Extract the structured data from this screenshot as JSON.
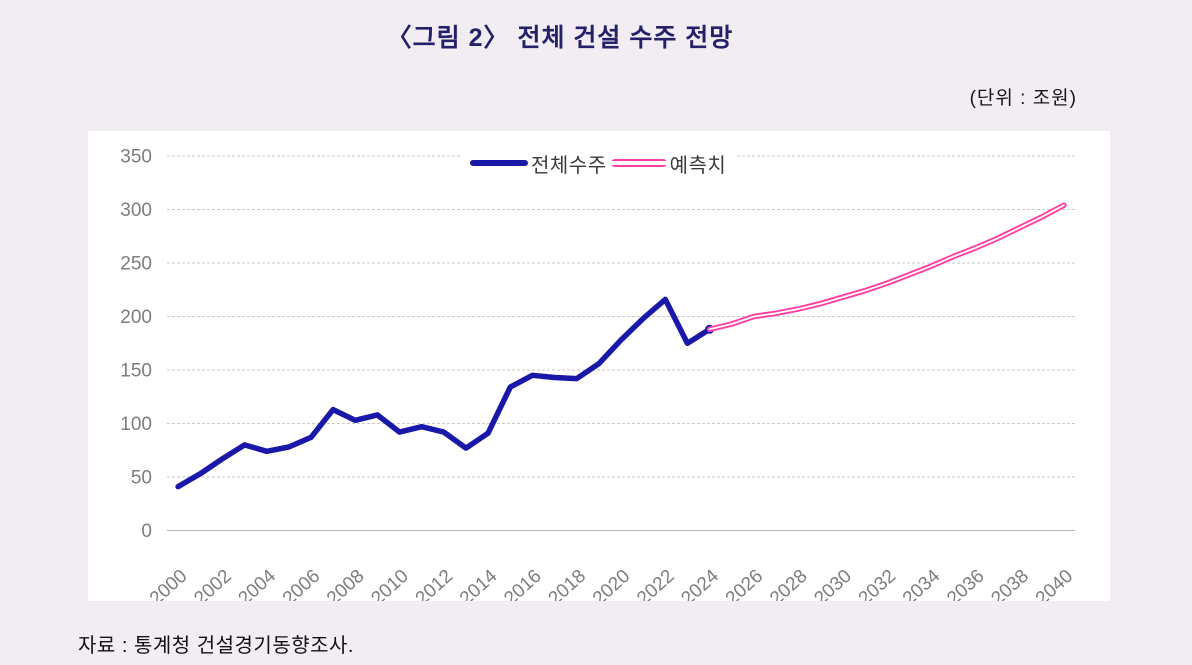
{
  "page": {
    "background": "#f2edf3"
  },
  "header": {
    "title": "〈그림 2〉 전체 건설 수주 전망",
    "unit_label": "(단위 : 조원)"
  },
  "source_note": "자료 : 통계청 건설경기동향조사.",
  "colors": {
    "actual_line": "#1a18a8",
    "forecast_line": "#ff3da4",
    "gridline": "#c9c9c9",
    "baseline": "#b5b5b5",
    "axis_text": "#7d7d7d",
    "title_text": "#242168",
    "panel_background": "#ffffff"
  },
  "chart_data": {
    "type": "line",
    "title": "전체 건설 수주 전망",
    "xlabel": "",
    "ylabel": "조원",
    "ylim": [
      0,
      350
    ],
    "ytick_step": 50,
    "ytick_labels": [
      "0",
      "50",
      "100",
      "150",
      "200",
      "250",
      "300",
      "350"
    ],
    "x_tick_interval": 2,
    "x_tick_labels": [
      "2000",
      "2002",
      "2004",
      "2006",
      "2008",
      "2010",
      "2012",
      "2014",
      "2016",
      "2018",
      "2020",
      "2022",
      "2024",
      "2026",
      "2028",
      "2030",
      "2032",
      "2034",
      "2036",
      "2038",
      "2040"
    ],
    "grid": "horizontal-dashed",
    "legend_position": "top-center",
    "x": [
      2000,
      2001,
      2002,
      2003,
      2004,
      2005,
      2006,
      2007,
      2008,
      2009,
      2010,
      2011,
      2012,
      2013,
      2014,
      2015,
      2016,
      2017,
      2018,
      2019,
      2020,
      2021,
      2022,
      2023,
      2024,
      2025,
      2026,
      2027,
      2028,
      2029,
      2030,
      2031,
      2032,
      2033,
      2034,
      2035,
      2036,
      2037,
      2038,
      2039,
      2040
    ],
    "series": [
      {
        "name": "전체수주",
        "color": "#1a18a8",
        "style": "solid",
        "values": [
          41,
          53,
          67,
          80,
          74,
          78,
          87,
          113,
          103,
          108,
          92,
          97,
          92,
          77,
          91,
          134,
          145,
          143,
          142,
          156,
          178,
          198,
          216,
          175,
          188,
          null,
          null,
          null,
          null,
          null,
          null,
          null,
          null,
          null,
          null,
          null,
          null,
          null,
          null,
          null,
          null
        ]
      },
      {
        "name": "예측치",
        "color": "#ff3da4",
        "style": "double-line",
        "values": [
          null,
          null,
          null,
          null,
          null,
          null,
          null,
          null,
          null,
          null,
          null,
          null,
          null,
          null,
          null,
          null,
          null,
          null,
          null,
          null,
          null,
          null,
          null,
          null,
          188,
          193,
          200,
          203,
          207,
          212,
          218,
          224,
          231,
          239,
          247,
          256,
          264,
          273,
          283,
          293,
          304
        ]
      }
    ],
    "junction_marker": {
      "year": 2024,
      "value": 188,
      "color": "#1a18a8"
    }
  }
}
